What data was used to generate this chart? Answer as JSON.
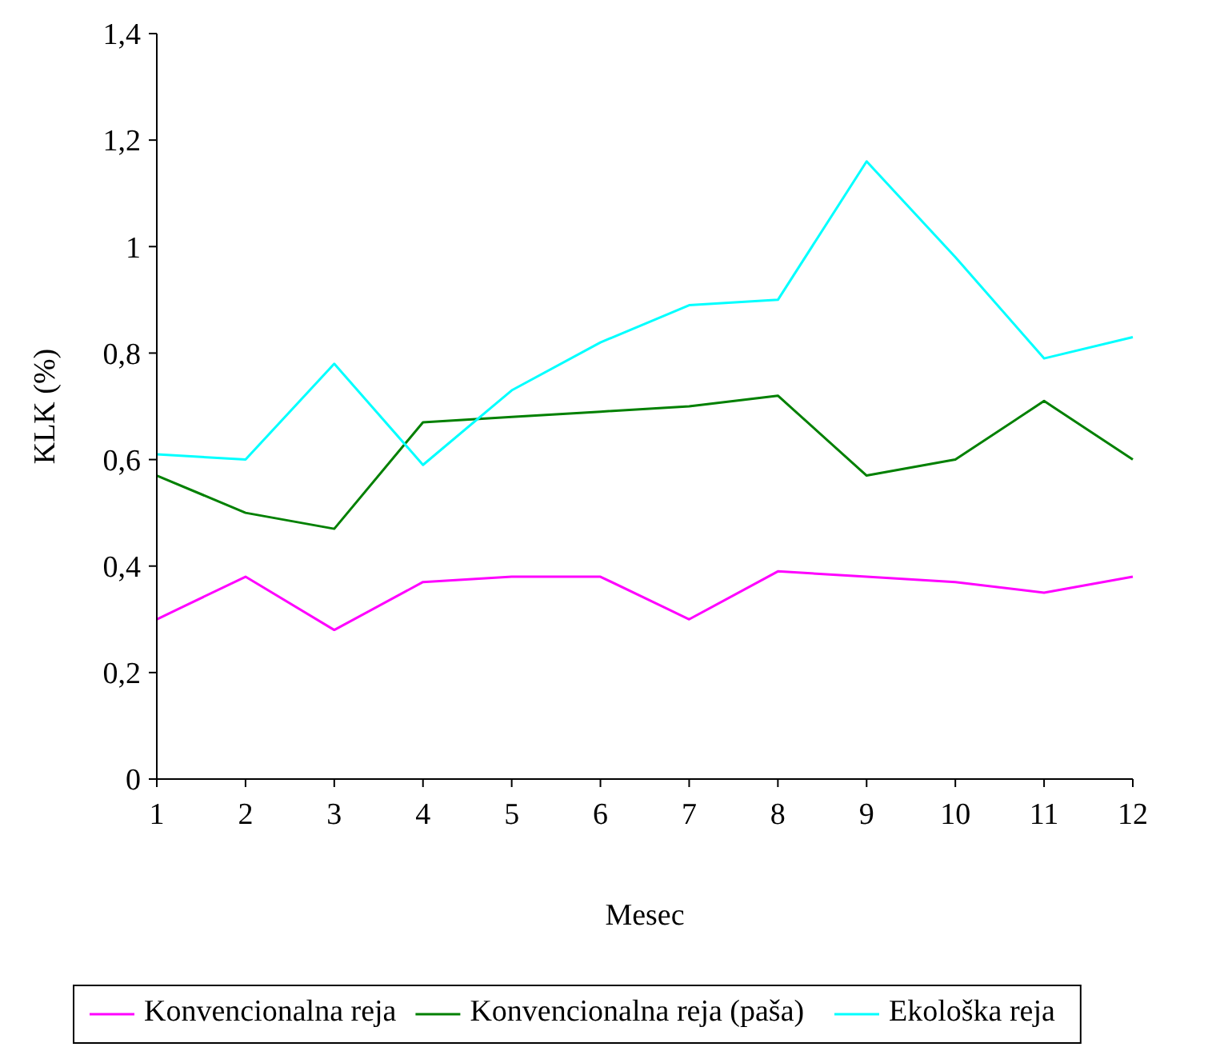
{
  "chart_data": {
    "type": "line",
    "xlabel": "Mesec",
    "ylabel": "KLK (%)",
    "x": [
      1,
      2,
      3,
      4,
      5,
      6,
      7,
      8,
      9,
      10,
      11,
      12
    ],
    "xlim": [
      1,
      12
    ],
    "xticks": [
      1,
      2,
      3,
      4,
      5,
      6,
      7,
      8,
      9,
      10,
      11,
      12
    ],
    "ylim": [
      0,
      1.4
    ],
    "yticks": [
      0,
      {
        "value": 0.2,
        "label": "0,2"
      },
      {
        "value": 0.4,
        "label": "0,4"
      },
      {
        "value": 0.6,
        "label": "0,6"
      },
      {
        "value": 0.8,
        "label": "0,8"
      },
      1,
      {
        "value": 1.2,
        "label": "1,2"
      },
      {
        "value": 1.4,
        "label": "1,4"
      }
    ],
    "grid": false,
    "legend": "bottom",
    "marker": "none",
    "line_style": "solid",
    "series": [
      {
        "name": "Konvencionalna reja",
        "color": "#ff00ff",
        "values": [
          0.3,
          0.38,
          0.28,
          0.37,
          0.38,
          0.38,
          0.3,
          0.39,
          0.38,
          0.37,
          0.35,
          0.38
        ]
      },
      {
        "name": "Konvencionalna reja (paša)",
        "color": "#008000",
        "values": [
          0.57,
          0.5,
          0.47,
          0.67,
          0.68,
          0.69,
          0.7,
          0.72,
          0.57,
          0.6,
          0.71,
          0.6
        ]
      },
      {
        "name": "Ekološka reja",
        "color": "#00ffff",
        "values": [
          0.61,
          0.6,
          0.78,
          0.59,
          0.73,
          0.82,
          0.89,
          0.9,
          1.16,
          0.98,
          0.79,
          0.83
        ]
      }
    ]
  }
}
